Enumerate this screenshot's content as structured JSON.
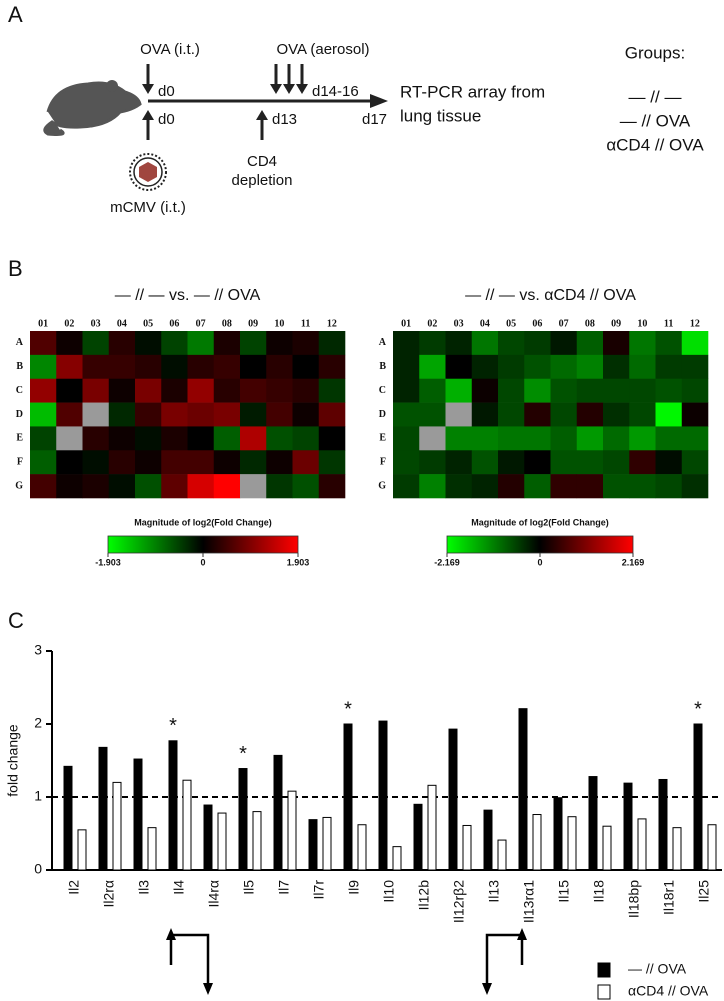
{
  "panel_labels": [
    "A",
    "B",
    "C"
  ],
  "panel_a": {
    "ova_it": "OVA (i.t.)",
    "d0_top": "d0",
    "d0_bottom": "d0",
    "ova_aerosol": "OVA (aerosol)",
    "d14_16": "d14-16",
    "d13": "d13",
    "cd4_depletion": [
      "CD4",
      "depletion"
    ],
    "mcmv": "mCMV (i.t.)",
    "d17": "d17",
    "readout": [
      "RT-PCR array from",
      "lung tissue"
    ],
    "groups_title": "Groups:",
    "groups": [
      "— // —",
      "— // OVA",
      "αCD4 // OVA"
    ]
  },
  "chart_data": [
    {
      "type": "heatmap",
      "title": "— // — vs. — // OVA",
      "columns": [
        "01",
        "02",
        "03",
        "04",
        "05",
        "06",
        "07",
        "08",
        "09",
        "10",
        "11",
        "12"
      ],
      "rows": [
        "A",
        "B",
        "C",
        "D",
        "E",
        "F",
        "G"
      ],
      "values": [
        [
          0.6,
          0.1,
          -0.5,
          0.3,
          -0.1,
          -0.5,
          -0.9,
          0.2,
          -0.5,
          0.1,
          0.2,
          -0.3
        ],
        [
          -1.0,
          1.0,
          0.4,
          0.4,
          0.3,
          -0.1,
          0.3,
          0.4,
          0,
          0.3,
          0,
          0.3
        ],
        [
          1.1,
          0,
          0.9,
          0.1,
          0.9,
          0.2,
          1.1,
          0.3,
          0.5,
          0.4,
          0.3,
          -0.4
        ],
        [
          -1.4,
          0.6,
          null,
          -0.3,
          0.4,
          0.9,
          0.8,
          0.9,
          -0.2,
          0.5,
          0.1,
          0.7
        ],
        [
          -0.5,
          null,
          0.3,
          0.1,
          -0.1,
          0.2,
          0,
          -0.7,
          1.3,
          -0.6,
          -0.5,
          0
        ],
        [
          -0.7,
          0,
          -0.1,
          0.3,
          0.1,
          0.5,
          0.5,
          0.1,
          -0.3,
          0.1,
          0.8,
          -0.4
        ],
        [
          0.5,
          0.1,
          0.2,
          -0.1,
          -0.6,
          0.7,
          1.6,
          1.9,
          null,
          -0.4,
          -0.6,
          0.3
        ]
      ],
      "colorbar_label": "Magnitude of log2(Fold Change)",
      "zlim": [
        -1.903,
        1.903
      ],
      "zticks": [
        -1.903,
        0,
        1.903
      ],
      "colors": [
        "#00ff00",
        "#000000",
        "#ff0000"
      ],
      "missing_color": "#9a9a9a"
    },
    {
      "type": "heatmap",
      "title": "— // — vs. αCD4 // OVA",
      "columns": [
        "01",
        "02",
        "03",
        "04",
        "05",
        "06",
        "07",
        "08",
        "09",
        "10",
        "11",
        "12"
      ],
      "rows": [
        "A",
        "B",
        "C",
        "D",
        "E",
        "F",
        "G"
      ],
      "values": [
        [
          -0.3,
          -0.5,
          -0.3,
          -1.0,
          -0.6,
          -0.5,
          -0.2,
          -0.8,
          0.2,
          -1.0,
          -0.7,
          -1.9
        ],
        [
          -0.3,
          -1.4,
          0,
          -0.3,
          -0.5,
          -0.7,
          -0.9,
          -1.1,
          -0.4,
          -0.9,
          -0.5,
          -0.5
        ],
        [
          -0.3,
          -0.8,
          -1.5,
          0.1,
          -0.6,
          -1.2,
          -0.7,
          -0.6,
          -0.6,
          -0.6,
          -0.7,
          -0.6
        ],
        [
          -0.7,
          -0.7,
          null,
          -0.2,
          -0.6,
          0.3,
          -0.6,
          0.3,
          -0.4,
          -0.6,
          -2.1,
          0.1
        ],
        [
          -0.6,
          null,
          -1.1,
          -1.1,
          -1.0,
          -1.0,
          -0.8,
          -1.3,
          -0.9,
          -1.3,
          -0.9,
          -0.9
        ],
        [
          -0.6,
          -0.5,
          -0.3,
          -0.7,
          -0.2,
          0,
          -0.7,
          -0.7,
          -0.6,
          0.4,
          -0.1,
          -0.6
        ],
        [
          -0.5,
          -1.1,
          -0.4,
          -0.3,
          0.3,
          -0.8,
          0.4,
          0.4,
          -0.7,
          -0.7,
          -0.6,
          -0.4
        ]
      ],
      "colorbar_label": "Magnitude of log2(Fold Change)",
      "zlim": [
        -2.169,
        2.169
      ],
      "zticks": [
        -2.169,
        0,
        2.169
      ],
      "colors": [
        "#00ff00",
        "#000000",
        "#ff0000"
      ],
      "missing_color": "#9a9a9a"
    },
    {
      "type": "bar",
      "ylabel": "fold change",
      "categories": [
        "Il2",
        "Il2rα",
        "Il3",
        "Il4",
        "Il4rα",
        "Il5",
        "Il7",
        "Il7r",
        "Il9",
        "Il10",
        "Il12b",
        "Il12rβ2",
        "Il13",
        "Il13rα1",
        "Il15",
        "Il18",
        "Il18bp",
        "Il18r1",
        "Il25"
      ],
      "series": [
        {
          "name": "— // OVA",
          "color": "#000000",
          "values": [
            1.42,
            1.68,
            1.52,
            1.77,
            0.89,
            1.39,
            1.57,
            0.69,
            2.0,
            2.04,
            0.9,
            1.93,
            0.82,
            2.21,
            0.99,
            1.28,
            1.19,
            1.24,
            2.0
          ]
        },
        {
          "name": "αCD4 // OVA",
          "color": "#ffffff",
          "values": [
            0.55,
            1.2,
            0.58,
            1.23,
            0.78,
            0.8,
            1.08,
            0.72,
            0.62,
            0.32,
            1.16,
            0.61,
            0.41,
            0.76,
            0.73,
            0.6,
            0.7,
            0.58,
            0.62
          ]
        }
      ],
      "significance_marks": [
        null,
        null,
        null,
        "*",
        null,
        "*",
        null,
        null,
        "*",
        null,
        null,
        null,
        null,
        null,
        null,
        null,
        null,
        null,
        "*"
      ],
      "ylim": [
        0,
        3
      ],
      "yticks": [
        0,
        1,
        2,
        3
      ],
      "reference_line": 1
    }
  ]
}
